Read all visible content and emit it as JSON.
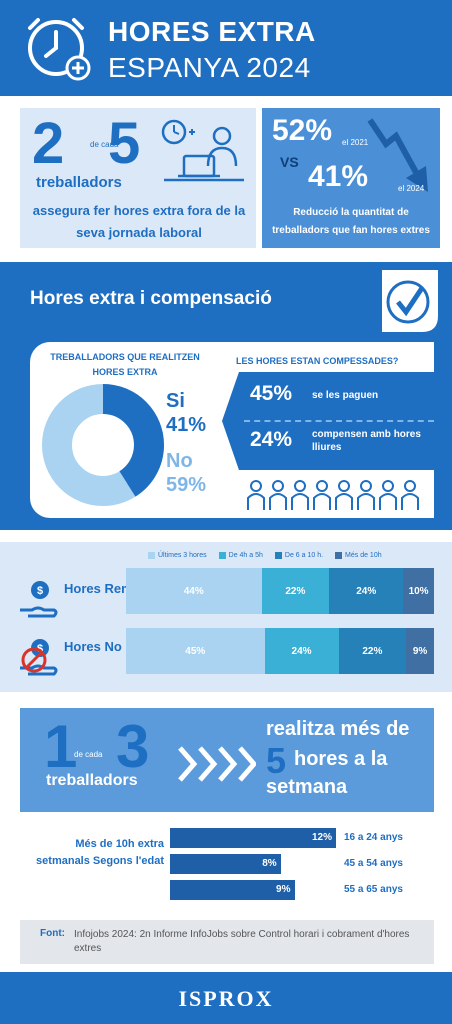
{
  "header": {
    "title_line1": "HORES EXTRA",
    "title_line2": "ESPANYA 2024",
    "icon": "clock-plus-icon"
  },
  "stat_left": {
    "num_a": "2",
    "de_cada": "de cada",
    "num_b": "5",
    "workers": "treballadors",
    "description": "assegura fer hores extra fora de la seva jornada laboral"
  },
  "stat_right": {
    "pct_2021": "52%",
    "label_2021": "el 2021",
    "vs": "VS",
    "pct_2024": "41%",
    "label_2024": "el 2024",
    "description": "Reducció la quantitat de treballadors que fan hores extres"
  },
  "compensation": {
    "title": "Hores extra i compensació",
    "question_left": "TREBALLADORS QUE REALITZEN HORES EXTRA",
    "si_label": "Si",
    "si_pct": "41%",
    "si_value": 41,
    "no_label": "No",
    "no_pct": "59%",
    "no_value": 59,
    "question_right": "LES HORES ESTAN COMPESSADES?",
    "paid_pct": "45%",
    "paid_text": "se les paguen",
    "free_pct": "24%",
    "free_text": "compensen amb hores lliures"
  },
  "hours_breakdown": {
    "legend": [
      {
        "label": "Últimes 3 hores",
        "color": "#a9d3f0"
      },
      {
        "label": "De 4h a 5h",
        "color": "#3bb0d6"
      },
      {
        "label": "De 6 a 10 h.",
        "color": "#2581b8"
      },
      {
        "label": "Més de 10h",
        "color": "#3f6fa3"
      }
    ],
    "rows": [
      {
        "label": "Hores Remunerades",
        "icon": "paid-hand-icon",
        "values": [
          44,
          22,
          24,
          10
        ],
        "labels": [
          "44%",
          "22%",
          "24%",
          "10%"
        ]
      },
      {
        "label": "Hores No Remunerades",
        "icon": "unpaid-hand-icon",
        "values": [
          45,
          24,
          22,
          9
        ],
        "labels": [
          "45%",
          "24%",
          "22%",
          "9%"
        ]
      }
    ]
  },
  "one_of_three": {
    "num_a": "1",
    "de_cada": "de cada",
    "num_b": "3",
    "workers": "treballadors",
    "line1": "realitza més de",
    "num_5": "5",
    "line2": "hores a la",
    "line3": "setmana"
  },
  "age": {
    "title": "Més de 10h extra setmanals Segons l'edat",
    "rows": [
      {
        "pct": "12%",
        "value": 12,
        "label": "16 a 24 anys"
      },
      {
        "pct": "8%",
        "value": 8,
        "label": "45 a 54 anys"
      },
      {
        "pct": "9%",
        "value": 9,
        "label": "55 a 65 anys"
      }
    ]
  },
  "source": {
    "label": "Font:",
    "text": "Infojobs 2024: 2n Informe InfoJobs sobre Control horari i cobrament d'hores extres"
  },
  "footer": {
    "logo": "ISPROX"
  }
}
